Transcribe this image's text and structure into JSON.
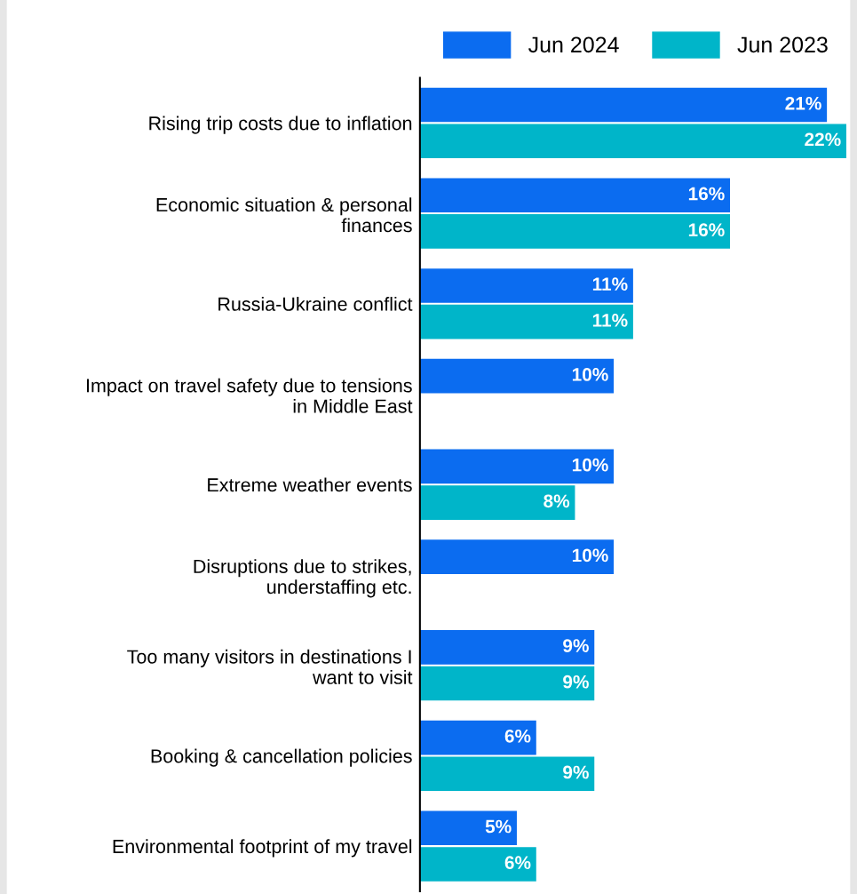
{
  "chart_data": {
    "type": "bar",
    "orientation": "horizontal",
    "categories": [
      "Rising trip costs due to inflation",
      "Economic situation & personal\nfinances",
      "Russia-Ukraine conflict",
      "Impact on travel safety due to tensions\nin Middle East",
      "Extreme weather events",
      "Disruptions due to strikes,\nunderstaffing etc.",
      "Too many visitors in destinations I\nwant to visit",
      "Booking & cancellation policies",
      "Environmental footprint of my travel"
    ],
    "series": [
      {
        "name": "Jun 2024",
        "color": "#0b6cf0",
        "values": [
          21,
          16,
          11,
          10,
          10,
          10,
          9,
          6,
          5
        ],
        "value_labels": [
          "21%",
          "16%",
          "11%",
          "10%",
          "10%",
          "10%",
          "9%",
          "6%",
          "5%"
        ]
      },
      {
        "name": "Jun 2023",
        "color": "#00b5c9",
        "values": [
          22,
          16,
          11,
          null,
          8,
          null,
          9,
          9,
          6
        ],
        "value_labels": [
          "22%",
          "16%",
          "11%",
          null,
          "8%",
          null,
          "9%",
          "9%",
          "6%"
        ]
      }
    ],
    "legend": "top",
    "grid": false
  }
}
